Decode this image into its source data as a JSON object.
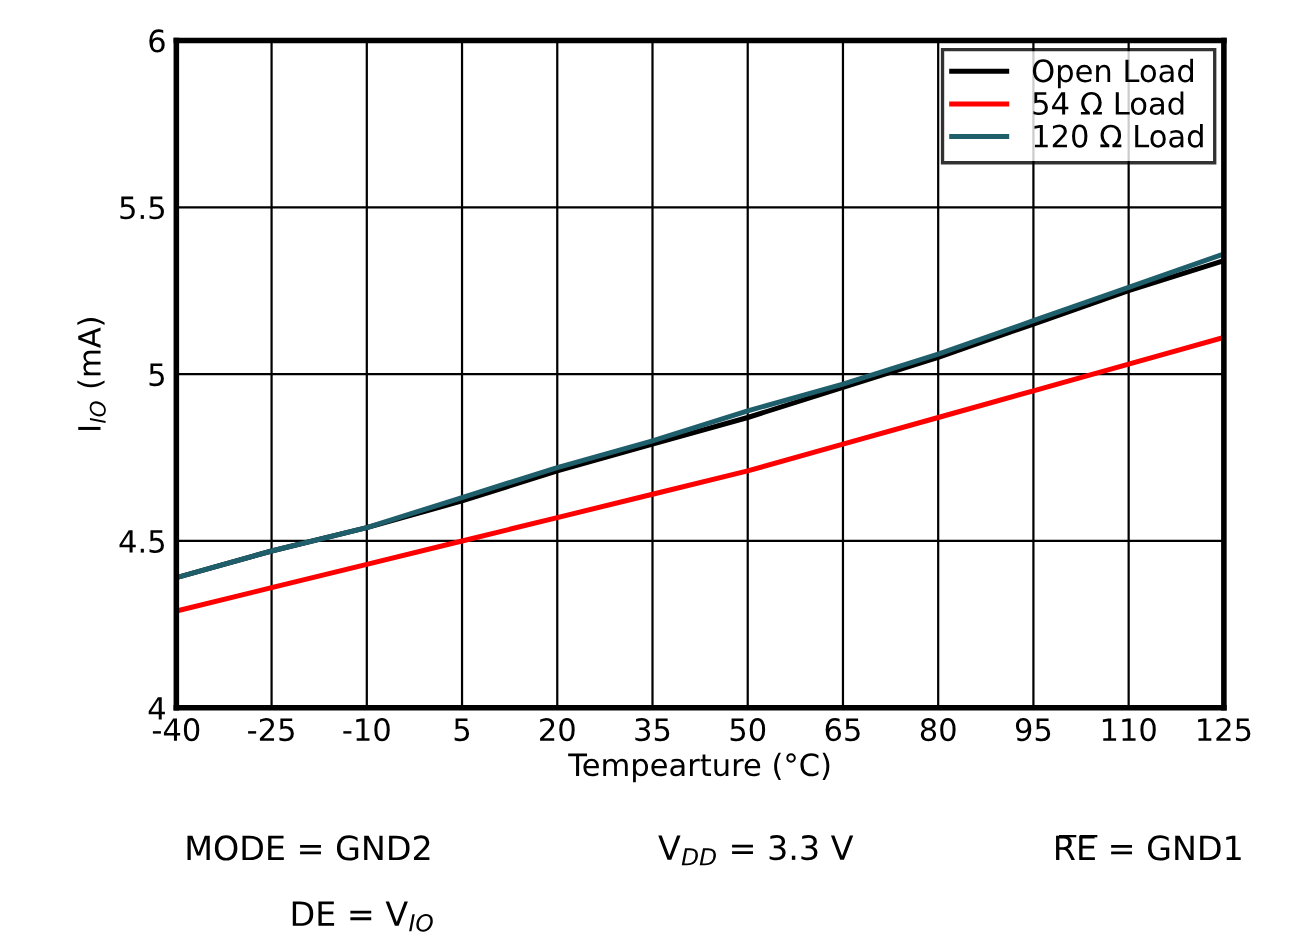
{
  "chart_data": {
    "type": "line",
    "xlabel": "Tempearture (°C)",
    "ylabel": "I$_{IO}$ (mA)",
    "x": [
      -40,
      -25,
      -10,
      5,
      20,
      35,
      50,
      65,
      80,
      95,
      110,
      125
    ],
    "series": [
      {
        "name": "Open Load",
        "color": "#000000",
        "values": [
          4.39,
          4.47,
          4.54,
          4.62,
          4.71,
          4.79,
          4.87,
          4.96,
          5.05,
          5.15,
          5.25,
          5.34
        ]
      },
      {
        "name": "54 Ω Load",
        "color": "#ff0000",
        "values": [
          4.29,
          4.36,
          4.43,
          4.5,
          4.57,
          4.64,
          4.71,
          4.79,
          4.87,
          4.95,
          5.03,
          5.11
        ]
      },
      {
        "name": "120 Ω Load",
        "color": "#1f5f6b",
        "values": [
          4.39,
          4.47,
          4.54,
          4.63,
          4.72,
          4.8,
          4.89,
          4.97,
          5.06,
          5.16,
          5.26,
          5.36
        ]
      }
    ],
    "xlim": [
      -40,
      125
    ],
    "xticks": [
      -40,
      -25,
      -10,
      5,
      20,
      35,
      50,
      65,
      80,
      95,
      110,
      125
    ],
    "ylim": [
      4,
      6
    ],
    "yticks": [
      4,
      4.5,
      5,
      5.5,
      6
    ],
    "grid": true,
    "legend": "top right",
    "marker": "none",
    "line_style": "solid",
    "annotations": [
      "MODE = GND2",
      "V$_{DD}$ = 3.3 V",
      "R̅E̅ = GND1",
      "DE = V$_{IO}$"
    ]
  }
}
